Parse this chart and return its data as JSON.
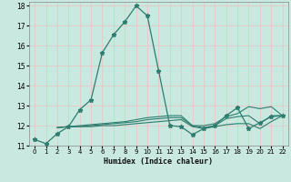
{
  "xlabel": "Humidex (Indice chaleur)",
  "xlim": [
    -0.5,
    22.5
  ],
  "ylim": [
    11,
    18.2
  ],
  "yticks": [
    11,
    12,
    13,
    14,
    15,
    16,
    17,
    18
  ],
  "xticks": [
    0,
    1,
    2,
    3,
    4,
    5,
    6,
    7,
    8,
    9,
    10,
    11,
    12,
    13,
    14,
    15,
    16,
    17,
    18,
    19,
    20,
    21,
    22
  ],
  "bg_color": "#c8e8e0",
  "plot_bg_color": "#c8e8e0",
  "line_color": "#2e7d6e",
  "grid_color": "#e8c8c8",
  "lines": [
    {
      "x": [
        0,
        1,
        2,
        3,
        4,
        5,
        6,
        7,
        8,
        9,
        10,
        11,
        12,
        13,
        14,
        15,
        16,
        17,
        18,
        19,
        20,
        21,
        22
      ],
      "y": [
        11.3,
        11.1,
        11.6,
        11.95,
        12.8,
        13.3,
        15.65,
        16.55,
        17.2,
        18.0,
        17.5,
        14.75,
        12.0,
        11.95,
        11.55,
        11.85,
        12.0,
        12.5,
        12.9,
        11.85,
        12.15,
        12.45,
        12.5
      ],
      "marker": true
    },
    {
      "x": [
        2,
        3,
        4,
        5,
        6,
        7,
        8,
        9,
        10,
        11,
        12,
        13,
        14,
        15,
        16,
        17,
        18,
        19,
        20,
        21,
        22
      ],
      "y": [
        11.9,
        11.95,
        11.95,
        11.95,
        12.0,
        12.0,
        12.05,
        12.1,
        12.15,
        12.2,
        12.25,
        12.3,
        11.95,
        11.85,
        11.95,
        12.05,
        12.1,
        12.1,
        11.85,
        12.2,
        12.5
      ],
      "marker": false
    },
    {
      "x": [
        2,
        3,
        4,
        5,
        6,
        7,
        8,
        9,
        10,
        11,
        12,
        13,
        14,
        15,
        16,
        17,
        18,
        19,
        20,
        21,
        22
      ],
      "y": [
        11.9,
        11.95,
        11.95,
        12.0,
        12.05,
        12.1,
        12.15,
        12.2,
        12.3,
        12.35,
        12.4,
        12.4,
        12.0,
        11.9,
        12.0,
        12.35,
        12.45,
        12.5,
        12.1,
        12.5,
        12.5
      ],
      "marker": false
    },
    {
      "x": [
        2,
        3,
        4,
        5,
        6,
        7,
        8,
        9,
        10,
        11,
        12,
        13,
        14,
        15,
        16,
        17,
        18,
        19,
        20,
        21,
        22
      ],
      "y": [
        11.9,
        11.95,
        12.0,
        12.05,
        12.1,
        12.15,
        12.2,
        12.3,
        12.4,
        12.45,
        12.5,
        12.5,
        12.0,
        12.0,
        12.1,
        12.45,
        12.6,
        12.95,
        12.85,
        12.95,
        12.5
      ],
      "marker": false
    }
  ],
  "figsize": [
    3.2,
    2.0
  ],
  "dpi": 100
}
